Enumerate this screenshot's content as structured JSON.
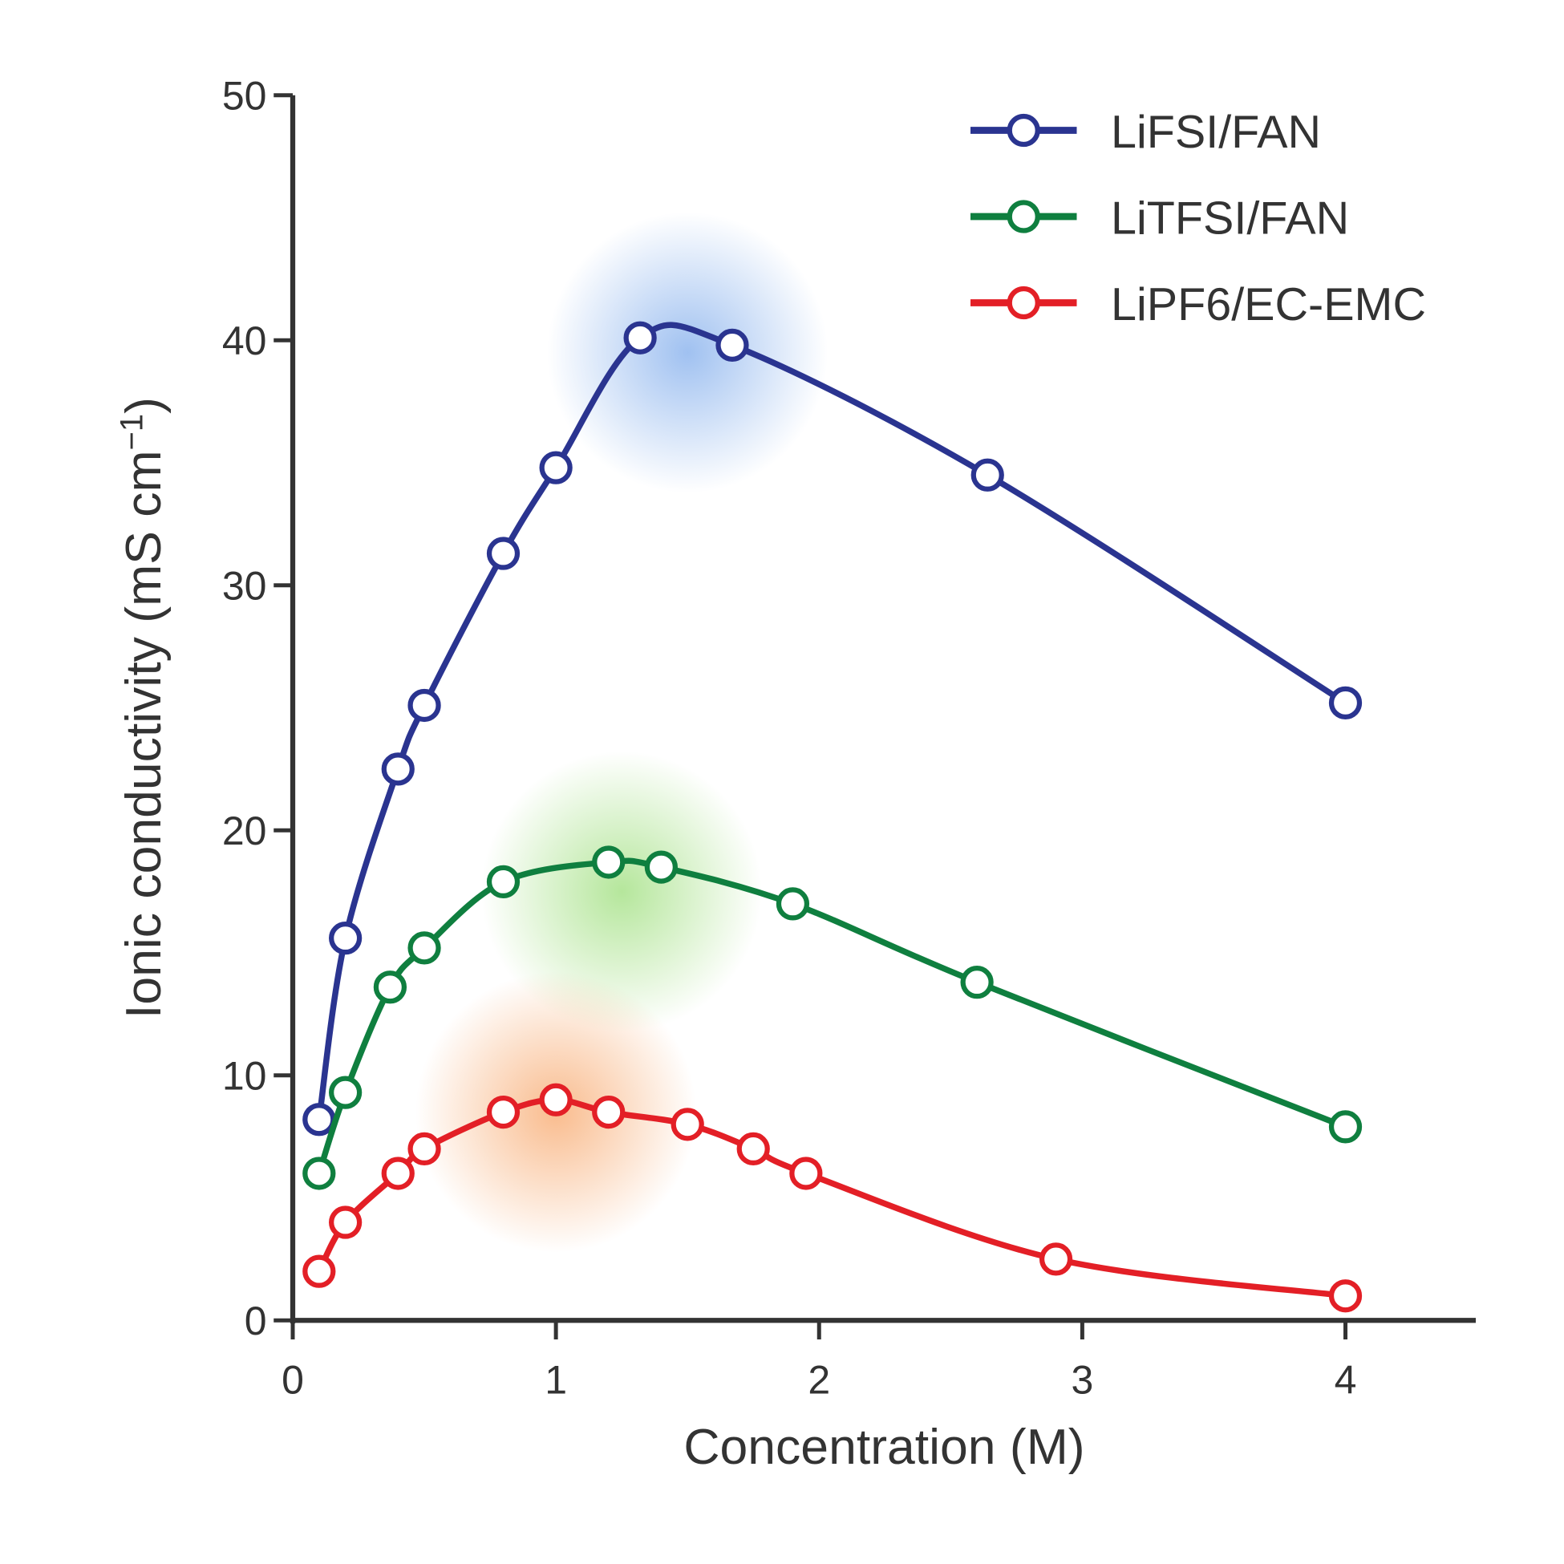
{
  "chart_data": {
    "type": "line",
    "xlabel": "Concentration (M)",
    "ylabel": "Ionic conductivity (mS cm",
    "ylabel_sup": "−1",
    "ylabel_end": ")",
    "xlim": [
      0,
      4.5
    ],
    "ylim": [
      0,
      50
    ],
    "xticks": [
      0,
      1,
      2,
      3,
      4
    ],
    "yticks": [
      0,
      10,
      20,
      30,
      40,
      50
    ],
    "grid": false,
    "legend": "top-right",
    "series": [
      {
        "name": "LiFSI/FAN",
        "color": "#2a3490",
        "glow": "#8fb6ee",
        "x": [
          0.1,
          0.2,
          0.4,
          0.5,
          0.8,
          1.0,
          1.32,
          1.67,
          2.64,
          4.0
        ],
        "y": [
          8.2,
          15.6,
          22.5,
          25.1,
          31.3,
          34.8,
          40.1,
          39.8,
          34.5,
          25.2
        ]
      },
      {
        "name": "LiTFSI/FAN",
        "color": "#0f7f3f",
        "glow": "#a8e28a",
        "x": [
          0.1,
          0.2,
          0.37,
          0.5,
          0.8,
          1.2,
          1.4,
          1.9,
          2.6,
          4.0
        ],
        "y": [
          6.0,
          9.3,
          13.6,
          15.2,
          17.9,
          18.7,
          18.5,
          17.0,
          13.8,
          7.9
        ]
      },
      {
        "name": "LiPF6/EC-EMC",
        "color": "#e31f26",
        "glow": "#f8b07a",
        "x": [
          0.1,
          0.2,
          0.4,
          0.5,
          0.8,
          1.0,
          1.2,
          1.5,
          1.75,
          1.95,
          2.9,
          4.0
        ],
        "y": [
          2.0,
          4.0,
          6.0,
          7.0,
          8.5,
          9.0,
          8.5,
          8.0,
          7.0,
          6.0,
          2.5,
          1.0
        ]
      }
    ]
  }
}
